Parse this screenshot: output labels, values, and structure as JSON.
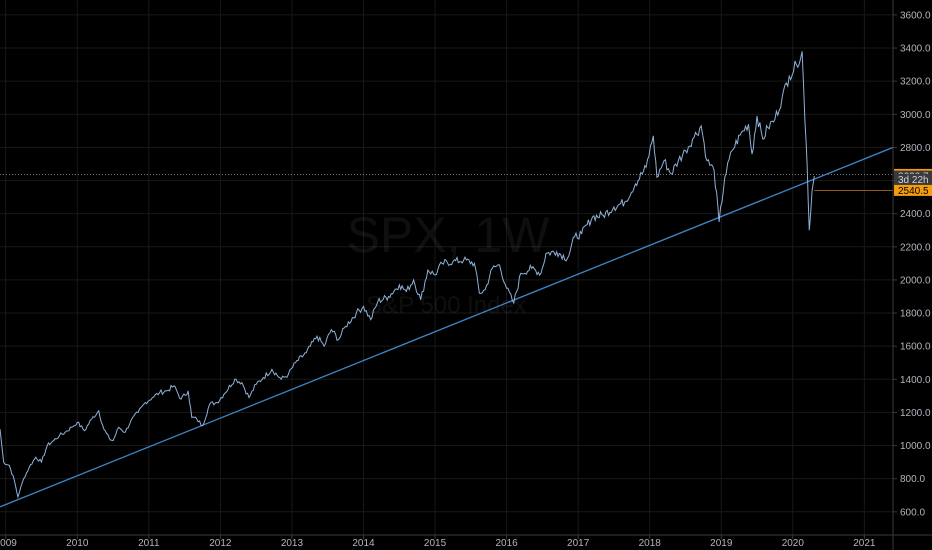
{
  "chart_data": {
    "type": "line",
    "symbol": "SPX",
    "interval": "1W",
    "watermark_title": "SPX, 1W",
    "watermark_subtitle": "S&P 500 Index",
    "y_ticks": [
      "600.0",
      "800.0",
      "1000.0",
      "1200.0",
      "1400.0",
      "1600.0",
      "1800.0",
      "2000.0",
      "2200.0",
      "2400.0",
      "2600.0",
      "2800.0",
      "3000.0",
      "3200.0",
      "3400.0",
      "3600.0"
    ],
    "x_ticks": [
      "2009",
      "2010",
      "2011",
      "2012",
      "2013",
      "2014",
      "2015",
      "2016",
      "2017",
      "2018",
      "2019",
      "2020",
      "2021"
    ],
    "ylim": [
      460,
      3690
    ],
    "xlim": [
      2008.92,
      2021.4
    ],
    "grid": true,
    "series": [
      {
        "values": [
          [
            2008.92,
            1100
          ],
          [
            2008.97,
            900
          ],
          [
            2009.05,
            880
          ],
          [
            2009.12,
            790
          ],
          [
            2009.17,
            690
          ],
          [
            2009.25,
            800
          ],
          [
            2009.33,
            870
          ],
          [
            2009.42,
            930
          ],
          [
            2009.5,
            900
          ],
          [
            2009.58,
            1000
          ],
          [
            2009.67,
            1030
          ],
          [
            2009.75,
            1060
          ],
          [
            2009.83,
            1080
          ],
          [
            2009.92,
            1110
          ],
          [
            2010.0,
            1140
          ],
          [
            2010.1,
            1090
          ],
          [
            2010.2,
            1160
          ],
          [
            2010.3,
            1210
          ],
          [
            2010.37,
            1100
          ],
          [
            2010.45,
            1040
          ],
          [
            2010.5,
            1030
          ],
          [
            2010.58,
            1110
          ],
          [
            2010.67,
            1080
          ],
          [
            2010.75,
            1150
          ],
          [
            2010.85,
            1200
          ],
          [
            2010.95,
            1260
          ],
          [
            2011.05,
            1290
          ],
          [
            2011.15,
            1320
          ],
          [
            2011.25,
            1330
          ],
          [
            2011.35,
            1360
          ],
          [
            2011.45,
            1280
          ],
          [
            2011.55,
            1330
          ],
          [
            2011.6,
            1170
          ],
          [
            2011.67,
            1160
          ],
          [
            2011.75,
            1120
          ],
          [
            2011.85,
            1250
          ],
          [
            2011.95,
            1260
          ],
          [
            2012.05,
            1310
          ],
          [
            2012.2,
            1400
          ],
          [
            2012.3,
            1380
          ],
          [
            2012.4,
            1290
          ],
          [
            2012.5,
            1370
          ],
          [
            2012.6,
            1410
          ],
          [
            2012.72,
            1460
          ],
          [
            2012.85,
            1400
          ],
          [
            2012.95,
            1430
          ],
          [
            2013.05,
            1500
          ],
          [
            2013.2,
            1560
          ],
          [
            2013.35,
            1660
          ],
          [
            2013.45,
            1600
          ],
          [
            2013.55,
            1700
          ],
          [
            2013.65,
            1640
          ],
          [
            2013.75,
            1720
          ],
          [
            2013.9,
            1800
          ],
          [
            2014.0,
            1840
          ],
          [
            2014.1,
            1760
          ],
          [
            2014.2,
            1870
          ],
          [
            2014.35,
            1900
          ],
          [
            2014.5,
            1970
          ],
          [
            2014.6,
            1930
          ],
          [
            2014.7,
            2000
          ],
          [
            2014.8,
            1880
          ],
          [
            2014.9,
            2060
          ],
          [
            2015.0,
            2030
          ],
          [
            2015.1,
            2100
          ],
          [
            2015.25,
            2110
          ],
          [
            2015.4,
            2120
          ],
          [
            2015.55,
            2100
          ],
          [
            2015.62,
            1920
          ],
          [
            2015.7,
            1940
          ],
          [
            2015.8,
            2070
          ],
          [
            2015.9,
            2090
          ],
          [
            2016.0,
            1950
          ],
          [
            2016.1,
            1860
          ],
          [
            2016.2,
            2040
          ],
          [
            2016.35,
            2070
          ],
          [
            2016.48,
            2040
          ],
          [
            2016.55,
            2160
          ],
          [
            2016.7,
            2170
          ],
          [
            2016.85,
            2130
          ],
          [
            2016.95,
            2260
          ],
          [
            2017.05,
            2280
          ],
          [
            2017.2,
            2380
          ],
          [
            2017.35,
            2390
          ],
          [
            2017.5,
            2440
          ],
          [
            2017.65,
            2470
          ],
          [
            2017.8,
            2580
          ],
          [
            2017.95,
            2680
          ],
          [
            2018.05,
            2870
          ],
          [
            2018.1,
            2620
          ],
          [
            2018.2,
            2720
          ],
          [
            2018.3,
            2640
          ],
          [
            2018.4,
            2720
          ],
          [
            2018.5,
            2780
          ],
          [
            2018.6,
            2850
          ],
          [
            2018.72,
            2930
          ],
          [
            2018.8,
            2720
          ],
          [
            2018.9,
            2660
          ],
          [
            2018.97,
            2350
          ],
          [
            2019.05,
            2620
          ],
          [
            2019.15,
            2780
          ],
          [
            2019.3,
            2900
          ],
          [
            2019.38,
            2940
          ],
          [
            2019.43,
            2760
          ],
          [
            2019.5,
            2990
          ],
          [
            2019.58,
            2850
          ],
          [
            2019.65,
            2920
          ],
          [
            2019.75,
            2970
          ],
          [
            2019.85,
            3100
          ],
          [
            2019.95,
            3230
          ],
          [
            2020.05,
            3300
          ],
          [
            2020.13,
            3380
          ],
          [
            2020.17,
            2950
          ],
          [
            2020.2,
            2700
          ],
          [
            2020.23,
            2300
          ],
          [
            2020.27,
            2540
          ],
          [
            2020.3,
            2626.7
          ]
        ]
      }
    ],
    "trendline": {
      "x": [
        2008.92,
        2021.4
      ],
      "y": [
        630,
        2800
      ]
    },
    "price_tags": [
      {
        "label": "2637.0",
        "value": 2637.0,
        "bg": "#f59d0c",
        "fg": "#000000",
        "line": "#888888"
      },
      {
        "label": "2626.7",
        "value": 2626.7,
        "bg": "#3a3a3a",
        "fg": "#d1d4dc"
      },
      {
        "label": "3d 22h",
        "value": 2540.5,
        "bg": "#3a3a3a",
        "fg": "#d1d4dc",
        "offset_row": -1
      },
      {
        "label": "2540.5",
        "value": 2540.5,
        "bg": "#f59d0c",
        "fg": "#000000",
        "line": "#c47a10"
      }
    ],
    "colors": {
      "background": "#000000",
      "line": "#8fb2d9",
      "trendline": "#3d85c6",
      "grid": "#181818",
      "axis": "#3a3a3a",
      "text": "#b2b5be"
    }
  }
}
